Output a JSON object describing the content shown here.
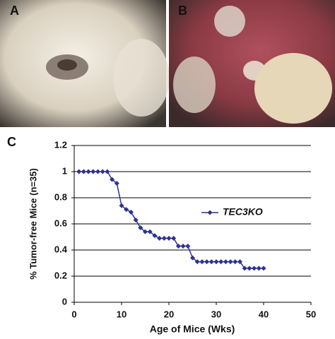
{
  "panels": [
    "A",
    "B",
    "C"
  ],
  "chart_data": {
    "type": "line",
    "xlabel": "Age of Mice (Wks)",
    "ylabel": "% Tumor-free Mice (n=35)",
    "x": [
      1,
      2,
      3,
      4,
      5,
      6,
      7,
      8,
      9,
      10,
      11,
      12,
      13,
      14,
      15,
      16,
      17,
      18,
      19,
      20,
      21,
      22,
      23,
      24,
      25,
      26,
      27,
      28,
      29,
      30,
      31,
      32,
      33,
      34,
      35,
      36,
      37,
      38,
      39,
      40
    ],
    "series": [
      {
        "name": "TEC3KO",
        "color": "#2e3192",
        "values": [
          1,
          1,
          1,
          1,
          1,
          1,
          1,
          0.94,
          0.91,
          0.74,
          0.71,
          0.69,
          0.63,
          0.57,
          0.54,
          0.54,
          0.51,
          0.49,
          0.49,
          0.49,
          0.49,
          0.43,
          0.43,
          0.43,
          0.34,
          0.31,
          0.31,
          0.31,
          0.31,
          0.31,
          0.31,
          0.31,
          0.31,
          0.31,
          0.31,
          0.26,
          0.26,
          0.26,
          0.26,
          0.26
        ]
      }
    ],
    "xlim": [
      0,
      50
    ],
    "xticks": [
      0,
      10,
      20,
      30,
      40,
      50
    ],
    "ylim": [
      0,
      1.2
    ],
    "yticks": [
      0,
      0.2,
      0.4,
      0.6,
      0.8,
      1,
      1.2
    ],
    "grid": true,
    "legend": "right"
  }
}
